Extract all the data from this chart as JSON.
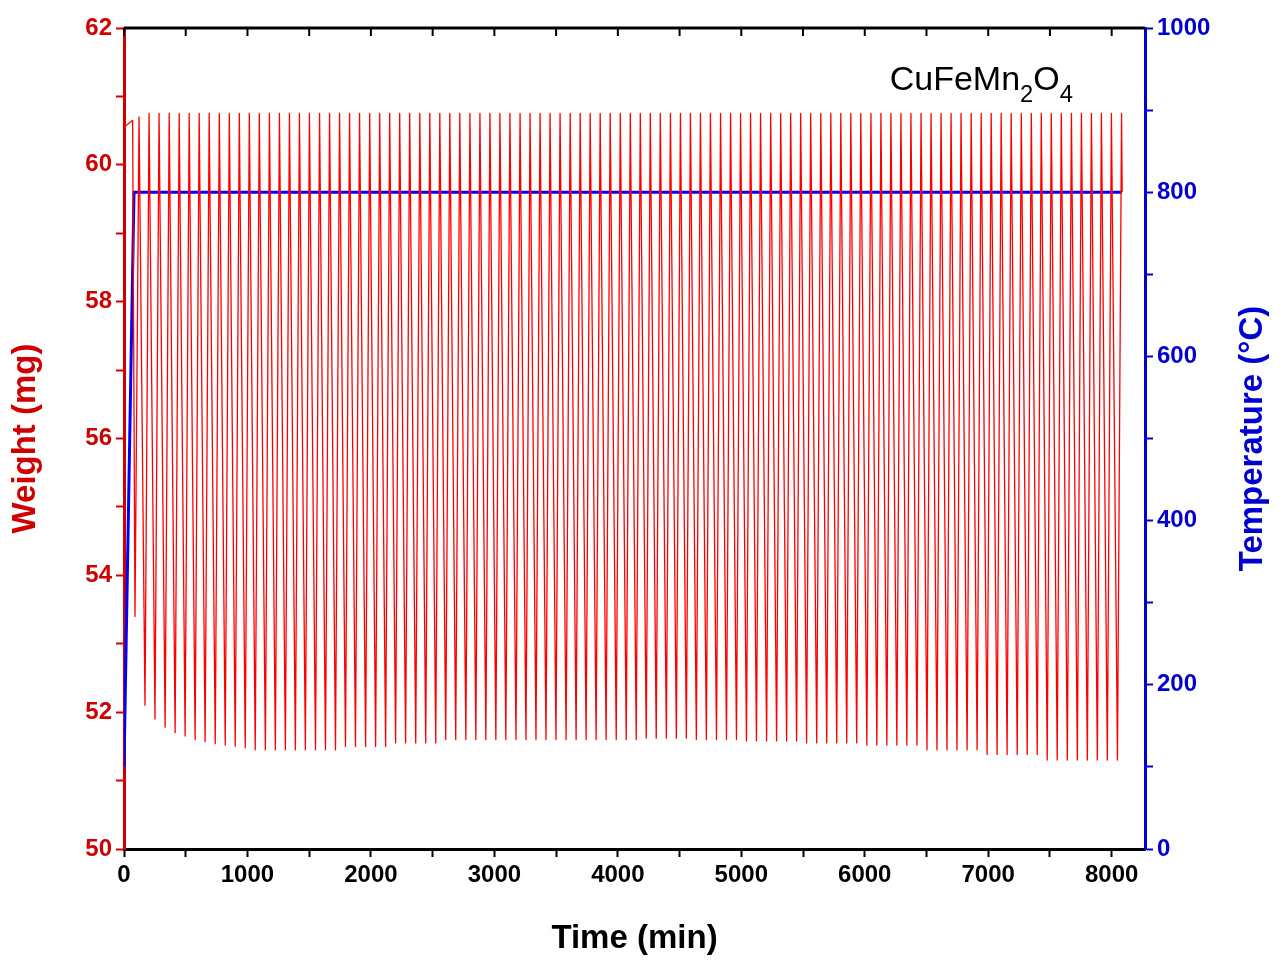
{
  "chart_data": {
    "type": "line",
    "xlabel": "Time (min)",
    "ylabel": "Weight (mg)",
    "y2label": "Temperature (°C)",
    "annotations": [
      "CuFeMn$_{2}$O$_{4}$"
    ],
    "xlim": [
      0,
      8270
    ],
    "xticks": [
      0,
      {
        "value": 500,
        "label": null
      },
      1000,
      {
        "value": 1500,
        "label": null
      },
      2000,
      {
        "value": 2500,
        "label": null
      },
      3000,
      {
        "value": 3500,
        "label": null
      },
      4000,
      {
        "value": 4500,
        "label": null
      },
      5000,
      {
        "value": 5500,
        "label": null
      },
      6000,
      {
        "value": 6500,
        "label": null
      },
      7000,
      {
        "value": 7500,
        "label": null
      },
      8000
    ],
    "ylim": [
      50,
      62
    ],
    "yticks": [
      50,
      {
        "value": 51,
        "label": null
      },
      52,
      {
        "value": 53,
        "label": null
      },
      54,
      {
        "value": 55,
        "label": null
      },
      56,
      {
        "value": 57,
        "label": null
      },
      58,
      {
        "value": 59,
        "label": null
      },
      60,
      {
        "value": 61,
        "label": null
      },
      62
    ],
    "y2lim": [
      0,
      1000
    ],
    "y2ticks": [
      0,
      {
        "value": 100,
        "label": null
      },
      200,
      {
        "value": 300,
        "label": null
      },
      400,
      {
        "value": 500,
        "label": null
      },
      600,
      {
        "value": 700,
        "label": null
      },
      800,
      {
        "value": 900,
        "label": null
      },
      1000
    ],
    "series": [
      {
        "color": "#ff0000",
        "x": [
          0,
          70,
          89,
          122,
          170,
          203,
          251,
          284,
          333,
          366,
          414,
          447,
          495,
          528,
          576,
          609,
          657,
          690,
          739,
          772,
          820,
          853,
          901,
          934,
          982,
          1015,
          1063,
          1096,
          1145,
          1178,
          1226,
          1259,
          1307,
          1340,
          1388,
          1421,
          1469,
          1502,
          1551,
          1584,
          1632,
          1665,
          1713,
          1746,
          1794,
          1827,
          1875,
          1908,
          1957,
          1990,
          2038,
          2071,
          2119,
          2152,
          2200,
          2233,
          2281,
          2314,
          2363,
          2396,
          2444,
          2477,
          2525,
          2558,
          2606,
          2639,
          2687,
          2720,
          2769,
          2802,
          2850,
          2883,
          2931,
          2964,
          3012,
          3045,
          3093,
          3126,
          3175,
          3208,
          3256,
          3289,
          3337,
          3370,
          3418,
          3451,
          3499,
          3532,
          3581,
          3614,
          3662,
          3695,
          3743,
          3776,
          3824,
          3857,
          3905,
          3938,
          3987,
          4020,
          4068,
          4101,
          4149,
          4182,
          4230,
          4263,
          4311,
          4344,
          4393,
          4426,
          4474,
          4507,
          4555,
          4588,
          4636,
          4669,
          4717,
          4750,
          4799,
          4832,
          4880,
          4913,
          4961,
          4994,
          5042,
          5075,
          5123,
          5156,
          5205,
          5238,
          5286,
          5319,
          5367,
          5400,
          5448,
          5481,
          5529,
          5562,
          5611,
          5644,
          5692,
          5725,
          5773,
          5806,
          5854,
          5887,
          5935,
          5968,
          6017,
          6050,
          6098,
          6131,
          6179,
          6212,
          6260,
          6293,
          6341,
          6374,
          6423,
          6456,
          6504,
          6537,
          6585,
          6618,
          6666,
          6699,
          6747,
          6780,
          6829,
          6862,
          6910,
          6943,
          6991,
          7024,
          7072,
          7105,
          7153,
          7186,
          7235,
          7268,
          7316,
          7349,
          7397,
          7430,
          7478,
          7511,
          7559,
          7592,
          7641,
          7674,
          7722,
          7755,
          7803,
          7836,
          7884,
          7917,
          7965,
          7998,
          8047,
          8080,
          8085
        ],
        "values": [
          60.55,
          60.65,
          53.4,
          60.7,
          52.1,
          60.75,
          51.9,
          60.75,
          51.78,
          60.75,
          51.7,
          60.75,
          51.65,
          60.75,
          51.6,
          60.75,
          51.57,
          60.75,
          51.54,
          60.75,
          51.52,
          60.75,
          51.5,
          60.75,
          51.48,
          60.75,
          51.45,
          60.75,
          51.45,
          60.75,
          51.45,
          60.75,
          51.45,
          60.75,
          51.45,
          60.75,
          51.45,
          60.75,
          51.45,
          60.75,
          51.45,
          60.75,
          51.45,
          60.75,
          51.5,
          60.75,
          51.5,
          60.75,
          51.5,
          60.75,
          51.5,
          60.75,
          51.5,
          60.75,
          51.55,
          60.75,
          51.55,
          60.75,
          51.55,
          60.75,
          51.55,
          60.75,
          51.55,
          60.75,
          51.6,
          60.75,
          51.6,
          60.75,
          51.6,
          60.75,
          51.6,
          60.75,
          51.6,
          60.75,
          51.6,
          60.75,
          51.6,
          60.75,
          51.6,
          60.75,
          51.6,
          60.75,
          51.6,
          60.75,
          51.6,
          60.75,
          51.6,
          60.75,
          51.6,
          60.75,
          51.6,
          60.75,
          51.6,
          60.75,
          51.6,
          60.75,
          51.6,
          60.75,
          51.6,
          60.75,
          51.6,
          60.75,
          51.6,
          60.75,
          51.62,
          60.75,
          51.62,
          60.75,
          51.62,
          60.75,
          51.62,
          60.75,
          51.62,
          60.75,
          51.6,
          60.75,
          51.6,
          60.75,
          51.6,
          60.75,
          51.6,
          60.75,
          51.6,
          60.75,
          51.58,
          60.75,
          51.58,
          60.75,
          51.58,
          60.75,
          51.58,
          60.75,
          51.58,
          60.75,
          51.58,
          60.75,
          51.55,
          60.75,
          51.55,
          60.75,
          51.55,
          60.75,
          51.55,
          60.75,
          51.55,
          60.75,
          51.55,
          60.75,
          51.52,
          60.75,
          51.52,
          60.75,
          51.52,
          60.75,
          51.52,
          60.75,
          51.52,
          60.75,
          51.52,
          60.75,
          51.45,
          60.75,
          51.45,
          60.75,
          51.45,
          60.75,
          51.45,
          60.75,
          51.45,
          60.75,
          51.45,
          60.75,
          51.38,
          60.75,
          51.38,
          60.75,
          51.38,
          60.75,
          51.38,
          60.75,
          51.38,
          60.75,
          51.38,
          60.75,
          51.3,
          60.75,
          51.3,
          60.75,
          51.3,
          60.75,
          51.3,
          60.75,
          51.3,
          60.75,
          51.3,
          60.75,
          51.3,
          60.75,
          51.3,
          60.75,
          59.6
        ]
      },
      {
        "color": "#0000ff",
        "axis": "y2",
        "x": [
          0,
          81,
          8080
        ],
        "values": [
          100,
          800,
          800
        ]
      }
    ]
  }
}
